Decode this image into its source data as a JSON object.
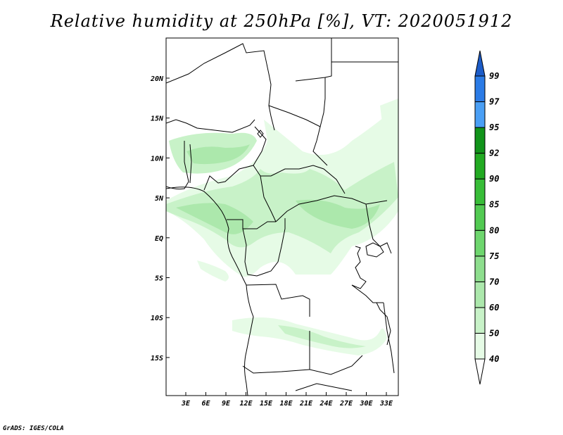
{
  "title": "Relative humidity at 250hPa [%], VT: 2020051912",
  "credit": "GrADS: IGES/COLA",
  "map": {
    "lon_ticks": [
      "3E",
      "6E",
      "9E",
      "12E",
      "15E",
      "18E",
      "21E",
      "24E",
      "27E",
      "30E",
      "33E"
    ],
    "lat_ticks": [
      "20N",
      "15N",
      "10N",
      "5N",
      "EQ",
      "5S",
      "10S",
      "15S"
    ]
  },
  "colorbar": {
    "levels": [
      "40",
      "50",
      "60",
      "70",
      "75",
      "80",
      "85",
      "90",
      "92",
      "95",
      "97",
      "99"
    ],
    "colors": [
      "#ffffff",
      "#e6fbe6",
      "#c8f2c8",
      "#ace8ac",
      "#8ede8e",
      "#6ed66e",
      "#52ca52",
      "#38bd38",
      "#22aa22",
      "#11931a",
      "#4a9ff5",
      "#2b7be6",
      "#1c5cc8"
    ]
  }
}
